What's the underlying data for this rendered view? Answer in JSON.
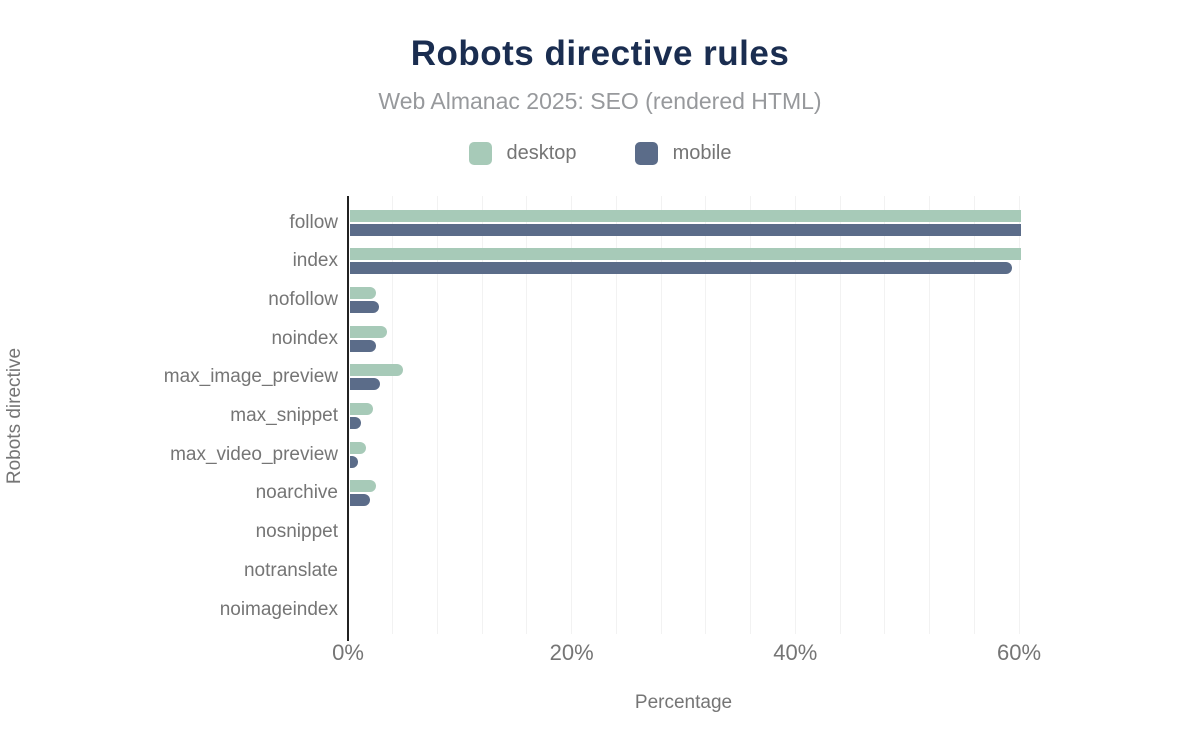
{
  "header": {
    "title": "Robots directive rules",
    "subtitle": "Web Almanac 2025: SEO (rendered HTML)"
  },
  "colors": {
    "desktop": "#a7cab8",
    "mobile": "#5b6c89",
    "title_navy": "#1a2d50",
    "text_gray": "#757575",
    "gridline": "#f2f2f2",
    "axis": "#212121"
  },
  "chart_data": {
    "type": "bar",
    "orientation": "horizontal",
    "title": "Robots directive rules",
    "subtitle": "Web Almanac 2025: SEO (rendered HTML)",
    "categories": [
      "follow",
      "index",
      "nofollow",
      "noindex",
      "max_image_preview",
      "max_snippet",
      "max_video_preview",
      "noarchive",
      "nosnippet",
      "notranslate",
      "noimageindex"
    ],
    "series": [
      {
        "name": "desktop",
        "color": "#a7cab8",
        "values": [
          60.0,
          60.0,
          2.3,
          3.3,
          4.7,
          2.1,
          1.4,
          2.3,
          0,
          0,
          0
        ]
      },
      {
        "name": "mobile",
        "color": "#5b6c89",
        "values": [
          60.0,
          59.2,
          2.6,
          2.3,
          2.7,
          1.0,
          0.7,
          1.8,
          0,
          0,
          0
        ]
      }
    ],
    "xlabel": "Percentage",
    "ylabel": "Robots directive",
    "xlim": [
      0,
      60
    ],
    "xticks": [
      0,
      20,
      40,
      60
    ],
    "xtick_labels": [
      "0%",
      "20%",
      "40%",
      "60%"
    ],
    "minor_grid_step_pct": 4,
    "grid": true,
    "legend_position": "top"
  }
}
